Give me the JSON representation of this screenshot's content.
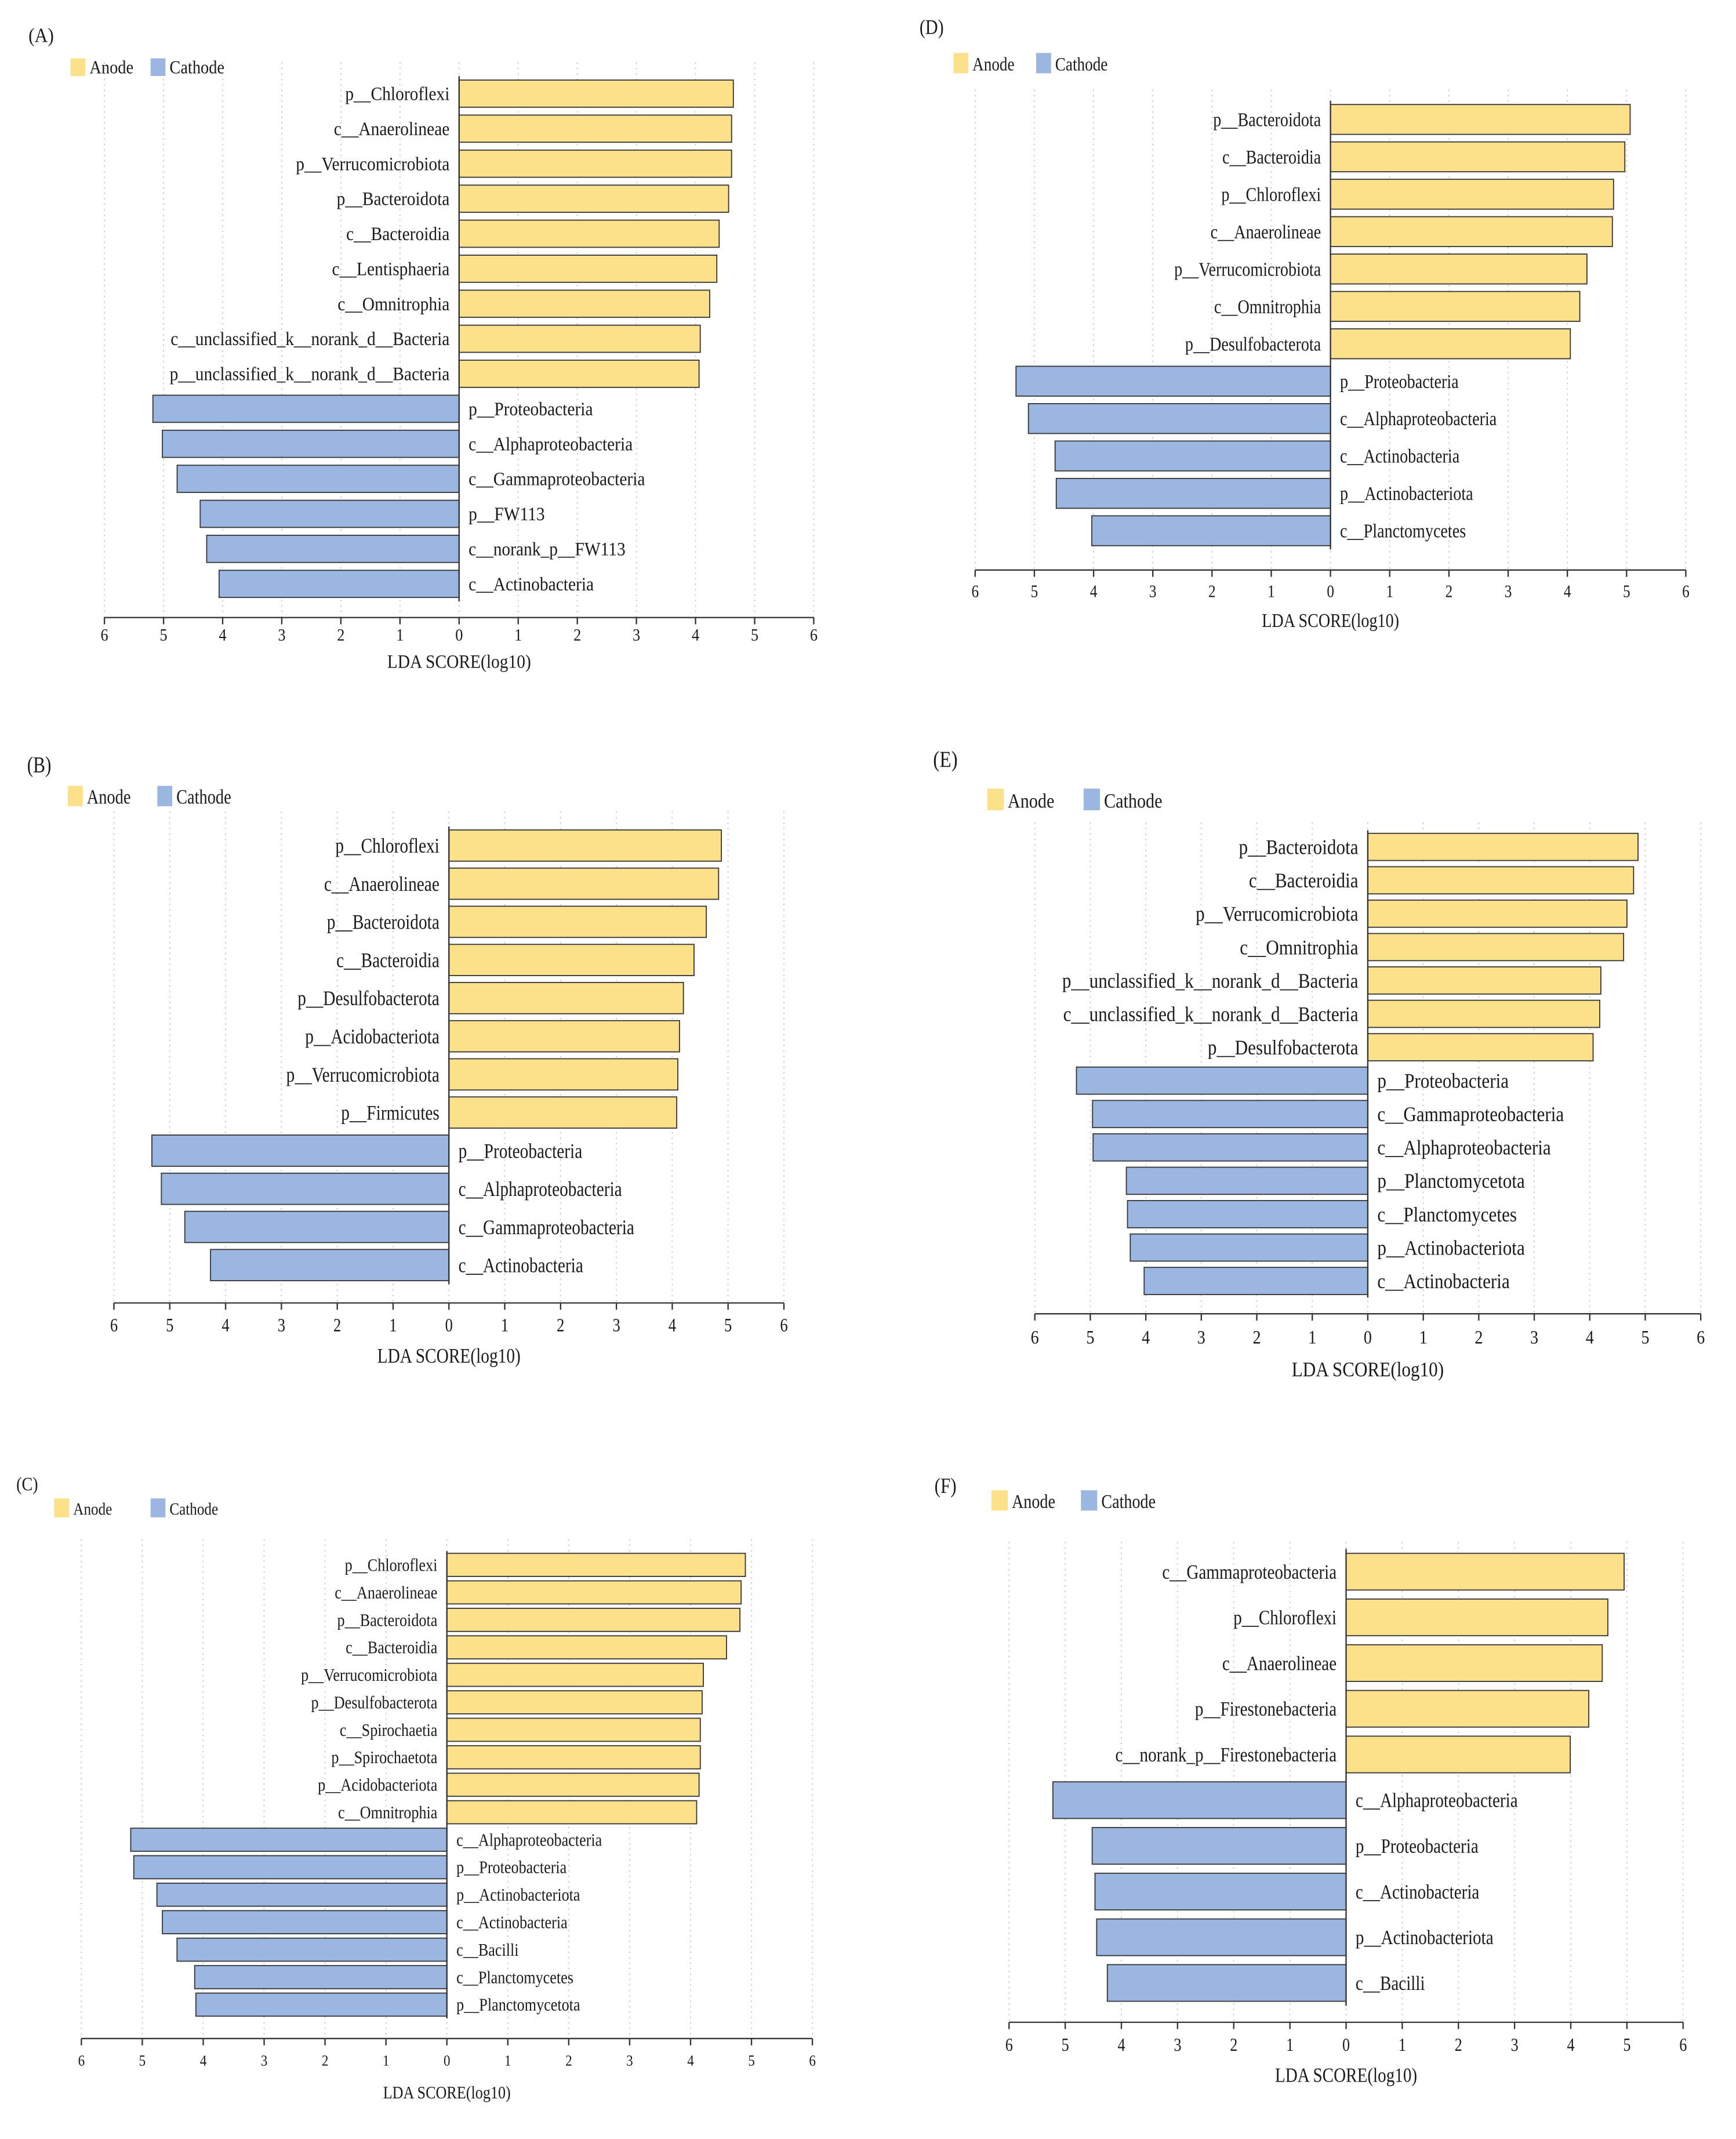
{
  "chart_data": [
    {
      "panel_label": "(A)",
      "type": "bar",
      "xlabel": "LDA SCORE(log10)",
      "xlim": [
        -6,
        6
      ],
      "xticks": [
        -6,
        -5,
        -4,
        -3,
        -2,
        -1,
        0,
        1,
        2,
        3,
        4,
        5,
        6
      ],
      "xtick_labels": [
        "6",
        "5",
        "4",
        "3",
        "2",
        "1",
        "0",
        "1",
        "2",
        "3",
        "4",
        "5",
        "6"
      ],
      "series": [
        {
          "name": "Anode",
          "color": "#FCE08A",
          "categories": [
            "p__Chloroflexi",
            "c__Anaerolineae",
            "p__Verrucomicrobiota",
            "p__Bacteroidota",
            "c__Bacteroidia",
            "c__Lentisphaeria",
            "c__Omnitrophia",
            "c__unclassified_k__norank_d__Bacteria",
            "p__unclassified_k__norank_d__Bacteria"
          ],
          "values": [
            4.64,
            4.61,
            4.61,
            4.56,
            4.4,
            4.36,
            4.24,
            4.08,
            4.06
          ]
        },
        {
          "name": "Cathode",
          "color": "#9BB6E0",
          "categories": [
            "p__Proteobacteria",
            "c__Alphaproteobacteria",
            "c__Gammaproteobacteria",
            "p__FW113",
            "c__norank_p__FW113",
            "c__Actinobacteria"
          ],
          "values": [
            5.18,
            5.02,
            4.77,
            4.38,
            4.27,
            4.06
          ]
        }
      ]
    },
    {
      "panel_label": "(B)",
      "type": "bar",
      "xlabel": "LDA SCORE(log10)",
      "xlim": [
        -6,
        6
      ],
      "xticks": [
        -6,
        -5,
        -4,
        -3,
        -2,
        -1,
        0,
        1,
        2,
        3,
        4,
        5,
        6
      ],
      "xtick_labels": [
        "6",
        "5",
        "4",
        "3",
        "2",
        "1",
        "0",
        "1",
        "2",
        "3",
        "4",
        "5",
        "6"
      ],
      "series": [
        {
          "name": "Anode",
          "color": "#FCE08A",
          "categories": [
            "p__Chloroflexi",
            "c__Anaerolineae",
            "p__Bacteroidota",
            "c__Bacteroidia",
            "p__Desulfobacterota",
            "p__Acidobacteriota",
            "p__Verrucomicrobiota",
            "p__Firmicutes"
          ],
          "values": [
            4.88,
            4.83,
            4.61,
            4.39,
            4.2,
            4.13,
            4.1,
            4.08
          ]
        },
        {
          "name": "Cathode",
          "color": "#9BB6E0",
          "categories": [
            "p__Proteobacteria",
            "c__Alphaproteobacteria",
            "c__Gammaproteobacteria",
            "c__Actinobacteria"
          ],
          "values": [
            5.32,
            5.15,
            4.73,
            4.27
          ]
        }
      ]
    },
    {
      "panel_label": "(C)",
      "type": "bar",
      "xlabel": "LDA SCORE(log10)",
      "xlim": [
        -6,
        6
      ],
      "xticks": [
        -6,
        -5,
        -4,
        -3,
        -2,
        -1,
        0,
        1,
        2,
        3,
        4,
        5,
        6
      ],
      "xtick_labels": [
        "6",
        "5",
        "4",
        "3",
        "2",
        "1",
        "0",
        "1",
        "2",
        "3",
        "4",
        "5",
        "6"
      ],
      "series": [
        {
          "name": "Anode",
          "color": "#FCE08A",
          "categories": [
            "p__Chloroflexi",
            "c__Anaerolineae",
            "p__Bacteroidota",
            "c__Bacteroidia",
            "p__Verrucomicrobiota",
            "p__Desulfobacterota",
            "c__Spirochaetia",
            "p__Spirochaetota",
            "p__Acidobacteriota",
            "c__Omnitrophia"
          ],
          "values": [
            4.9,
            4.83,
            4.81,
            4.59,
            4.21,
            4.19,
            4.16,
            4.16,
            4.14,
            4.1
          ]
        },
        {
          "name": "Cathode",
          "color": "#9BB6E0",
          "categories": [
            "c__Alphaproteobacteria",
            "p__Proteobacteria",
            "p__Actinobacteriota",
            "c__Actinobacteria",
            "c__Bacilli",
            "c__Planctomycetes",
            "p__Planctomycetota"
          ],
          "values": [
            5.19,
            5.14,
            4.76,
            4.67,
            4.43,
            4.14,
            4.12
          ]
        }
      ]
    },
    {
      "panel_label": "(D)",
      "type": "bar",
      "xlabel": "LDA SCORE(log10)",
      "xlim": [
        -6,
        6
      ],
      "xticks": [
        -6,
        -5,
        -4,
        -3,
        -2,
        -1,
        0,
        1,
        2,
        3,
        4,
        5,
        6
      ],
      "xtick_labels": [
        "6",
        "5",
        "4",
        "3",
        "2",
        "1",
        "0",
        "1",
        "2",
        "3",
        "4",
        "5",
        "6"
      ],
      "series": [
        {
          "name": "Anode",
          "color": "#FCE08A",
          "categories": [
            "p__Bacteroidota",
            "c__Bacteroidia",
            "p__Chloroflexi",
            "c__Anaerolineae",
            "p__Verrucomicrobiota",
            "c__Omnitrophia",
            "p__Desulfobacterota"
          ],
          "values": [
            5.06,
            4.97,
            4.78,
            4.76,
            4.33,
            4.21,
            4.05
          ]
        },
        {
          "name": "Cathode",
          "color": "#9BB6E0",
          "categories": [
            "p__Proteobacteria",
            "c__Alphaproteobacteria",
            "c__Actinobacteria",
            "p__Actinobacteriota",
            "c__Planctomycetes"
          ],
          "values": [
            5.31,
            5.1,
            4.65,
            4.63,
            4.03
          ]
        }
      ]
    },
    {
      "panel_label": "(E)",
      "type": "bar",
      "xlabel": "LDA SCORE(log10)",
      "xlim": [
        -6,
        6
      ],
      "xticks": [
        -6,
        -5,
        -4,
        -3,
        -2,
        -1,
        0,
        1,
        2,
        3,
        4,
        5,
        6
      ],
      "xtick_labels": [
        "6",
        "5",
        "4",
        "3",
        "2",
        "1",
        "0",
        "1",
        "2",
        "3",
        "4",
        "5",
        "6"
      ],
      "series": [
        {
          "name": "Anode",
          "color": "#FCE08A",
          "categories": [
            "p__Bacteroidota",
            "c__Bacteroidia",
            "p__Verrucomicrobiota",
            "c__Omnitrophia",
            "p__unclassified_k__norank_d__Bacteria",
            "c__unclassified_k__norank_d__Bacteria",
            "p__Desulfobacterota"
          ],
          "values": [
            4.87,
            4.79,
            4.67,
            4.61,
            4.2,
            4.18,
            4.06
          ]
        },
        {
          "name": "Cathode",
          "color": "#9BB6E0",
          "categories": [
            "p__Proteobacteria",
            "c__Gammaproteobacteria",
            "c__Alphaproteobacteria",
            "p__Planctomycetota",
            "c__Planctomycetes",
            "p__Actinobacteriota",
            "c__Actinobacteria"
          ],
          "values": [
            5.25,
            4.96,
            4.95,
            4.35,
            4.33,
            4.28,
            4.03
          ]
        }
      ]
    },
    {
      "panel_label": "(F)",
      "type": "bar",
      "xlabel": "LDA SCORE(log10)",
      "xlim": [
        -6,
        6
      ],
      "xticks": [
        -6,
        -5,
        -4,
        -3,
        -2,
        -1,
        0,
        1,
        2,
        3,
        4,
        5,
        6
      ],
      "xtick_labels": [
        "6",
        "5",
        "4",
        "3",
        "2",
        "1",
        "0",
        "1",
        "2",
        "3",
        "4",
        "5",
        "6"
      ],
      "series": [
        {
          "name": "Anode",
          "color": "#FCE08A",
          "categories": [
            "c__Gammaproteobacteria",
            "p__Chloroflexi",
            "c__Anaerolineae",
            "p__Firestonebacteria",
            "c__norank_p__Firestonebacteria"
          ],
          "values": [
            4.95,
            4.66,
            4.56,
            4.32,
            3.99
          ]
        },
        {
          "name": "Cathode",
          "color": "#9BB6E0",
          "categories": [
            "c__Alphaproteobacteria",
            "p__Proteobacteria",
            "c__Actinobacteria",
            "p__Actinobacteriota",
            "c__Bacilli"
          ],
          "values": [
            5.22,
            4.52,
            4.47,
            4.44,
            4.25
          ]
        }
      ]
    }
  ]
}
